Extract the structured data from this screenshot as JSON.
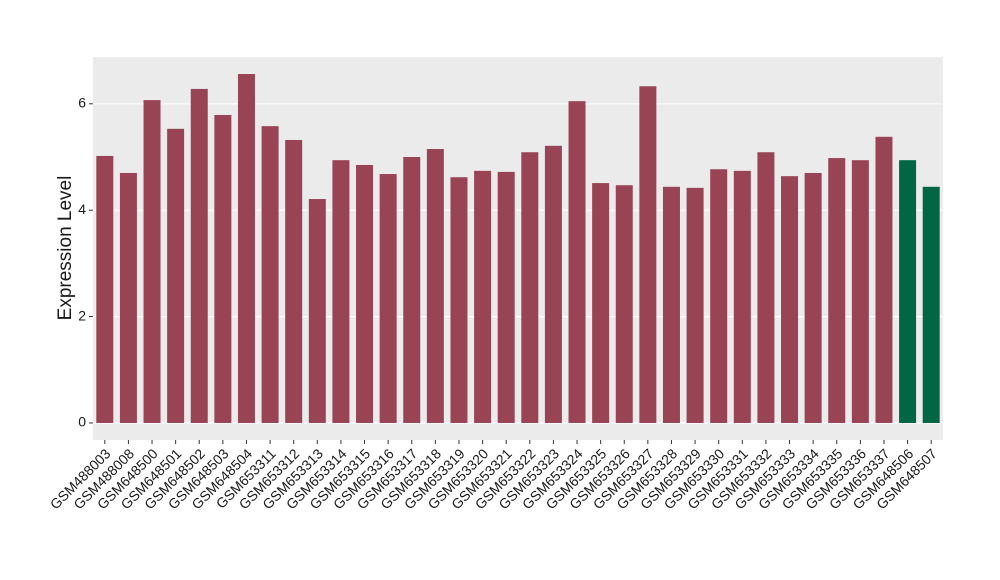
{
  "chart_data": {
    "type": "bar",
    "y_label": "Expression Level",
    "categories": [
      "GSM488003",
      "GSM488008",
      "GSM648500",
      "GSM648501",
      "GSM648502",
      "GSM648503",
      "GSM648504",
      "GSM653311",
      "GSM653312",
      "GSM653313",
      "GSM653314",
      "GSM653315",
      "GSM653316",
      "GSM653317",
      "GSM653318",
      "GSM653319",
      "GSM653320",
      "GSM653321",
      "GSM653322",
      "GSM653323",
      "GSM653324",
      "GSM653325",
      "GSM653326",
      "GSM653327",
      "GSM653328",
      "GSM653329",
      "GSM653330",
      "GSM653331",
      "GSM653332",
      "GSM653333",
      "GSM653334",
      "GSM653335",
      "GSM653336",
      "GSM653337",
      "GSM648506",
      "GSM648507"
    ],
    "values": [
      5.02,
      4.7,
      6.07,
      5.53,
      6.28,
      5.79,
      6.56,
      5.58,
      5.32,
      4.21,
      4.94,
      4.85,
      4.68,
      5.0,
      5.15,
      4.62,
      4.74,
      4.72,
      5.09,
      5.21,
      6.05,
      4.51,
      4.47,
      6.33,
      4.44,
      4.42,
      4.77,
      4.74,
      5.09,
      4.64,
      4.7,
      4.98,
      4.94,
      5.38,
      4.94,
      4.44
    ],
    "colors": [
      "#994455",
      "#994455",
      "#994455",
      "#994455",
      "#994455",
      "#994455",
      "#994455",
      "#994455",
      "#994455",
      "#994455",
      "#994455",
      "#994455",
      "#994455",
      "#994455",
      "#994455",
      "#994455",
      "#994455",
      "#994455",
      "#994455",
      "#994455",
      "#994455",
      "#994455",
      "#994455",
      "#994455",
      "#994455",
      "#994455",
      "#994455",
      "#994455",
      "#994455",
      "#994455",
      "#994455",
      "#994455",
      "#994455",
      "#994455",
      "#006644",
      "#006644"
    ],
    "ylim": [
      -0.32,
      6.88
    ],
    "yticks": [
      0,
      2,
      4,
      6
    ],
    "grid": true
  }
}
